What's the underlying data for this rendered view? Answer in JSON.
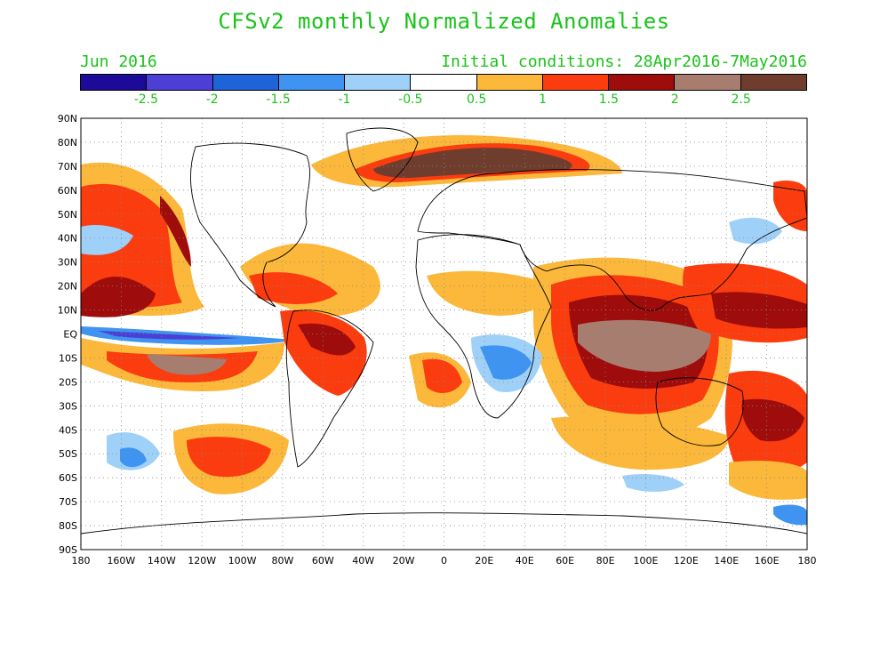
{
  "header": {
    "title": "CFSv2 monthly Normalized Anomalies",
    "month": "Jun 2016",
    "initial_conditions": "Initial conditions: 28Apr2016-7May2016"
  },
  "colorbar": {
    "colors": [
      "#1e0a99",
      "#4b3fd6",
      "#1e64d8",
      "#3e94f0",
      "#9fd0f8",
      "#ffffff",
      "#fbb83a",
      "#fb3c0e",
      "#9e0c0c",
      "#a77d70",
      "#6e3d2e"
    ],
    "labels": [
      "-2.5",
      "-2",
      "-1.5",
      "-1",
      "-0.5",
      "0.5",
      "1",
      "1.5",
      "2",
      "2.5"
    ]
  },
  "map": {
    "variable": "normalized anomalies",
    "lat_ticks": [
      "90N",
      "80N",
      "70N",
      "60N",
      "50N",
      "40N",
      "30N",
      "20N",
      "10N",
      "EQ",
      "10S",
      "20S",
      "30S",
      "40S",
      "50S",
      "60S",
      "70S",
      "80S",
      "90S"
    ],
    "lon_ticks": [
      "180",
      "160W",
      "140W",
      "120W",
      "100W",
      "80W",
      "60W",
      "40W",
      "20W",
      "0",
      "20E",
      "40E",
      "60E",
      "80E",
      "100E",
      "120E",
      "140E",
      "160E",
      "180"
    ],
    "legend_colors": {
      "neg3": "#1e0a99",
      "neg2": "#1e64d8",
      "neg1": "#3e94f0",
      "neg05": "#9fd0f8",
      "pos05": "#fbb83a",
      "pos1": "#fb3c0e",
      "pos15": "#9e0c0c",
      "pos2": "#a77d70",
      "pos25": "#6e3d2e"
    }
  }
}
